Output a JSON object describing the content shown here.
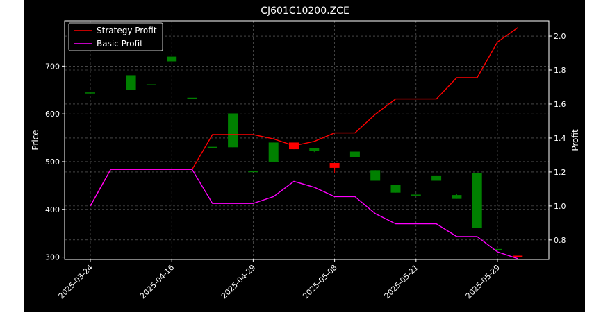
{
  "chart_data": {
    "type": "candlestick-with-lines",
    "title": "CJ601C10200.ZCE",
    "ylabel_left": "Price",
    "ylabel_right": "Profit",
    "xlabel": "",
    "ylim_left": [
      295,
      795
    ],
    "ylim_right": [
      0.685,
      2.09
    ],
    "grid": true,
    "legend_position": "top-left",
    "x_ticks": [
      "2025-03-24",
      "2025-04-16",
      "2025-04-29",
      "2025-05-08",
      "2025-05-21",
      "2025-05-29"
    ],
    "x_tick_index": [
      0,
      4,
      8,
      12,
      16,
      20
    ],
    "candles": [
      {
        "open": 645,
        "close": 645,
        "high": 645,
        "low": 645
      },
      {
        "open": 790,
        "close": 790,
        "high": 790,
        "low": 790
      },
      {
        "open": 650,
        "close": 681,
        "high": 681,
        "low": 650
      },
      {
        "open": 662,
        "close": 662,
        "high": 662,
        "low": 662
      },
      {
        "open": 710,
        "close": 720,
        "high": 720,
        "low": 710
      },
      {
        "open": 634,
        "close": 634,
        "high": 634,
        "low": 634
      },
      {
        "open": 531,
        "close": 531,
        "high": 531,
        "low": 531
      },
      {
        "open": 530,
        "close": 601,
        "high": 601,
        "low": 530
      },
      {
        "open": 480,
        "close": 480,
        "high": 480,
        "low": 480
      },
      {
        "open": 500,
        "close": 540,
        "high": 540,
        "low": 500
      },
      {
        "open": 540,
        "close": 526,
        "high": 540,
        "low": 526
      },
      {
        "open": 522,
        "close": 529,
        "high": 529,
        "low": 520
      },
      {
        "open": 497,
        "close": 487,
        "high": 497,
        "low": 476
      },
      {
        "open": 510,
        "close": 521,
        "high": 521,
        "low": 510
      },
      {
        "open": 460,
        "close": 482,
        "high": 482,
        "low": 460
      },
      {
        "open": 435,
        "close": 451,
        "high": 451,
        "low": 435
      },
      {
        "open": 431,
        "close": 431,
        "high": 431,
        "low": 431
      },
      {
        "open": 460,
        "close": 471,
        "high": 471,
        "low": 460
      },
      {
        "open": 422,
        "close": 430,
        "high": 433,
        "low": 422
      },
      {
        "open": 361,
        "close": 476,
        "high": 476,
        "low": 361
      },
      {
        "open": 317,
        "close": 317,
        "high": 317,
        "low": 317
      },
      {
        "open": 303,
        "close": 300,
        "high": 303,
        "low": 300
      }
    ],
    "series": [
      {
        "name": "Strategy Profit",
        "color": "#ff0000",
        "values": [
          1.0,
          1.215,
          1.215,
          1.215,
          1.215,
          1.215,
          1.42,
          1.42,
          1.42,
          1.395,
          1.355,
          1.38,
          1.43,
          1.43,
          1.54,
          1.63,
          1.63,
          1.63,
          1.755,
          1.755,
          1.965,
          2.05
        ]
      },
      {
        "name": "Basic Profit",
        "color": "#ff00ff",
        "values": [
          1.0,
          1.215,
          1.215,
          1.215,
          1.215,
          1.215,
          1.015,
          1.015,
          1.015,
          1.055,
          1.145,
          1.11,
          1.055,
          1.055,
          0.955,
          0.895,
          0.895,
          0.895,
          0.82,
          0.82,
          0.73,
          0.69
        ]
      }
    ],
    "left_ticks": [
      300,
      400,
      500,
      600,
      700
    ],
    "right_ticks": [
      "0.8",
      "1.0",
      "1.2",
      "1.4",
      "1.6",
      "1.8",
      "2.0"
    ],
    "up_color": "#008000",
    "down_color": "#ff0000"
  }
}
